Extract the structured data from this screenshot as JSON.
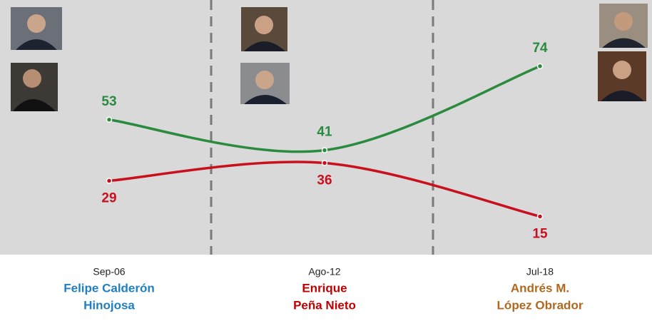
{
  "chart_data": {
    "type": "line",
    "categories": [
      "Sep-06",
      "Ago-12",
      "Jul-18"
    ],
    "winners": [
      {
        "lines": [
          "Felipe Calderón",
          "Hinojosa"
        ],
        "color": "#1f7fc0"
      },
      {
        "lines": [
          "Enrique",
          "Peña Nieto"
        ],
        "color": "#c00000"
      },
      {
        "lines": [
          "Andrés M.",
          "López Obrador"
        ],
        "color": "#b0681e"
      }
    ],
    "series": [
      {
        "color": "#2a8a3e",
        "values": [
          53,
          41,
          74
        ],
        "label_position": "above"
      },
      {
        "color": "#c8101e",
        "values": [
          29,
          36,
          15
        ],
        "label_position": "below"
      }
    ],
    "ylim": [
      0,
      100
    ]
  }
}
